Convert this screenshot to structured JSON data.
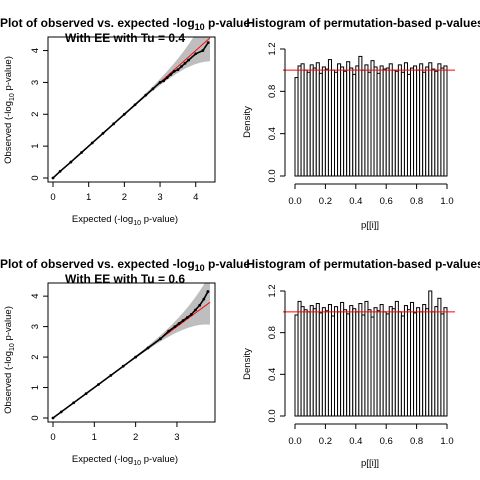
{
  "chart_data": [
    {
      "type": "scatter",
      "title": "Plot of observed vs. expected -log",
      "title_sub": "10",
      "title_tail": " p-value",
      "subtitle": "With EE with Tu =  0.4",
      "xlabel": "Expected (-log",
      "xlabel_sub": "10",
      "xlabel_tail": " p-value)",
      "ylabel": "Observed (-log",
      "ylabel_sub": "10",
      "ylabel_tail": " p-value)",
      "xlim": [
        0,
        4.4
      ],
      "ylim": [
        0,
        4.3
      ],
      "xticks": [
        "0",
        "1",
        "2",
        "3",
        "4"
      ],
      "yticks": [
        "0",
        "1",
        "2",
        "3",
        "4"
      ],
      "reference_line_color": "#ff0000",
      "band_color": "#bebebe",
      "points": [
        [
          0,
          0
        ],
        [
          0.2,
          0.21
        ],
        [
          0.5,
          0.5
        ],
        [
          0.8,
          0.8
        ],
        [
          1.1,
          1.1
        ],
        [
          1.4,
          1.4
        ],
        [
          1.7,
          1.7
        ],
        [
          2.0,
          2.0
        ],
        [
          2.3,
          2.3
        ],
        [
          2.6,
          2.6
        ],
        [
          2.8,
          2.8
        ],
        [
          3.0,
          3.0
        ],
        [
          3.1,
          3.05
        ],
        [
          3.2,
          3.15
        ],
        [
          3.3,
          3.25
        ],
        [
          3.4,
          3.35
        ],
        [
          3.5,
          3.4
        ],
        [
          3.6,
          3.5
        ],
        [
          3.7,
          3.6
        ],
        [
          3.8,
          3.7
        ],
        [
          4.0,
          3.9
        ],
        [
          4.2,
          4.0
        ],
        [
          4.35,
          4.25
        ]
      ]
    },
    {
      "type": "bar",
      "title": "Histogram of permutation-based p-values",
      "xlabel": "p[[i]]",
      "ylabel": "Density",
      "xlim": [
        0,
        1
      ],
      "ylim": [
        0,
        1.2
      ],
      "xticks": [
        "0.0",
        "0.2",
        "0.4",
        "0.6",
        "0.8",
        "1.0"
      ],
      "yticks": [
        "0.0",
        "0.4",
        "0.8",
        "1.2"
      ],
      "reference_line": 1.0,
      "reference_line_color": "#ff0000",
      "values": [
        0.93,
        1.04,
        1.06,
        1.0,
        0.98,
        1.05,
        1.02,
        1.07,
        0.97,
        1.03,
        1.01,
        1.1,
        1.0,
        0.98,
        1.06,
        1.03,
        0.99,
        1.08,
        1.02,
        0.96,
        1.04,
        1.13,
        1.0,
        1.05,
        0.98,
        1.09,
        1.03,
        0.97,
        1.04,
        1.01,
        1.02,
        1.06,
        1.0,
        0.99,
        1.05,
        0.98,
        1.07,
        0.96,
        1.02,
        1.04,
        1.0,
        1.06,
        0.98,
        1.03,
        1.07,
        1.01,
        0.99,
        1.06,
        1.02,
        1.04
      ]
    },
    {
      "type": "scatter",
      "title": "Plot of observed vs. expected -log",
      "title_sub": "10",
      "title_tail": " p-value",
      "subtitle": "With EE with Tu =  0.6",
      "xlabel": "Expected (-log",
      "xlabel_sub": "10",
      "xlabel_tail": " p-value)",
      "ylabel": "Observed (-log",
      "ylabel_sub": "10",
      "ylabel_tail": " p-value)",
      "xlim": [
        0,
        3.8
      ],
      "ylim": [
        0,
        4.3
      ],
      "xticks": [
        "0",
        "1",
        "2",
        "3"
      ],
      "yticks": [
        "0",
        "1",
        "2",
        "3",
        "4"
      ],
      "reference_line_color": "#ff0000",
      "band_color": "#bebebe",
      "points": [
        [
          0,
          0
        ],
        [
          0.2,
          0.2
        ],
        [
          0.5,
          0.5
        ],
        [
          0.8,
          0.8
        ],
        [
          1.1,
          1.1
        ],
        [
          1.4,
          1.4
        ],
        [
          1.7,
          1.7
        ],
        [
          2.0,
          2.0
        ],
        [
          2.3,
          2.3
        ],
        [
          2.6,
          2.6
        ],
        [
          2.8,
          2.85
        ],
        [
          2.95,
          3.0
        ],
        [
          3.05,
          3.1
        ],
        [
          3.15,
          3.2
        ],
        [
          3.25,
          3.3
        ],
        [
          3.35,
          3.4
        ],
        [
          3.45,
          3.55
        ],
        [
          3.55,
          3.7
        ],
        [
          3.65,
          3.9
        ],
        [
          3.75,
          4.15
        ]
      ]
    },
    {
      "type": "bar",
      "title": "Histogram of permutation-based p-values",
      "xlabel": "p[[i]]",
      "ylabel": "Density",
      "xlim": [
        0,
        1
      ],
      "ylim": [
        0,
        1.2
      ],
      "xticks": [
        "0.0",
        "0.2",
        "0.4",
        "0.6",
        "0.8",
        "1.0"
      ],
      "yticks": [
        "0.0",
        "0.4",
        "0.8",
        "1.2"
      ],
      "reference_line": 1.0,
      "reference_line_color": "#ff0000",
      "values": [
        0.97,
        1.1,
        1.05,
        1.02,
        1.0,
        1.06,
        1.03,
        1.08,
        0.99,
        1.04,
        1.01,
        1.07,
        0.96,
        1.05,
        1.0,
        1.09,
        1.02,
        0.98,
        1.06,
        1.03,
        1.0,
        1.08,
        0.97,
        1.1,
        1.02,
        0.95,
        1.04,
        1.01,
        1.07,
        1.0,
        0.98,
        1.05,
        1.03,
        1.1,
        1.0,
        0.96,
        1.06,
        1.02,
        1.09,
        0.99,
        1.04,
        1.0,
        1.07,
        1.03,
        1.2,
        1.0,
        1.05,
        1.13,
        0.98,
        1.04
      ]
    }
  ]
}
